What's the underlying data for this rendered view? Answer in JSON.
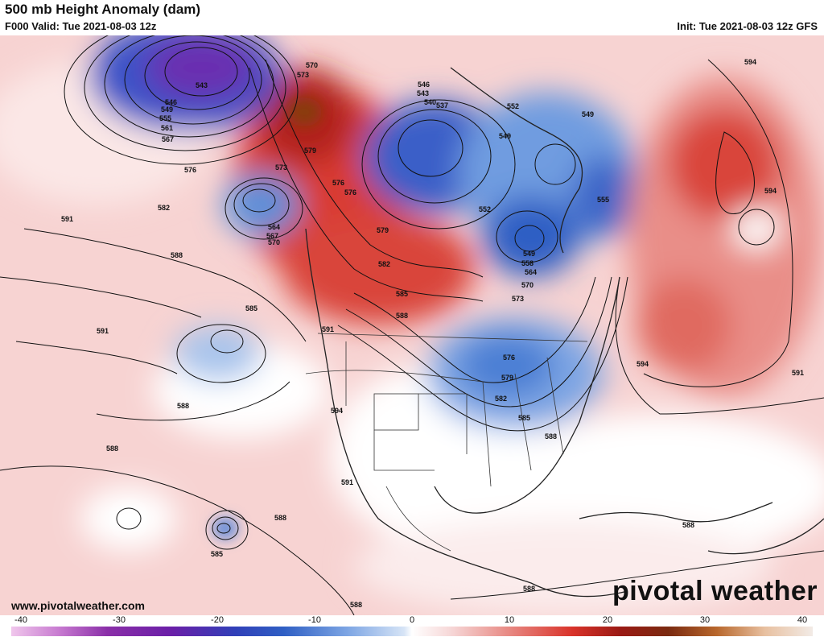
{
  "header": {
    "title": "500 mb Height Anomaly (dam)",
    "valid": "F000 Valid: Tue 2021-08-03 12z",
    "init": "Init: Tue 2021-08-03 12z GFS"
  },
  "footer": {
    "url": "www.pivotalweather.com",
    "brand": "pivotal weather"
  },
  "colorbar": {
    "ticks": [
      "-40",
      "-30",
      "-20",
      "-10",
      "0",
      "10",
      "20",
      "30",
      "40"
    ]
  },
  "contour_labels": {
    "nw_low": [
      "543",
      "546",
      "549",
      "555",
      "561",
      "567"
    ],
    "alaska_ridge": [
      "570",
      "573",
      "579"
    ],
    "gulf_alaska": [
      "576",
      "573",
      "582"
    ],
    "pacific_low": [
      "564",
      "567",
      "570"
    ],
    "west": [
      "591",
      "588",
      "585",
      "591",
      "588",
      "576",
      "576",
      "579",
      "582",
      "585",
      "588",
      "591",
      "594"
    ],
    "arctic": [
      "546",
      "543",
      "540",
      "537",
      "552",
      "549",
      "549",
      "552",
      "555"
    ],
    "hudson": [
      "549",
      "558",
      "564",
      "570",
      "573"
    ],
    "east_us": [
      "576",
      "579",
      "582",
      "585",
      "588"
    ],
    "atlantic": [
      "594",
      "594",
      "594",
      "591",
      "588"
    ],
    "south_pacific": [
      "588",
      "588",
      "585",
      "588",
      "591",
      "588"
    ],
    "far_east": [
      "588"
    ],
    "baja": [
      "594"
    ]
  },
  "legend_colors": {
    "strong_negative": "#6a1fa8",
    "negative": "#2f5fc4",
    "weak_negative": "#b9d0ee",
    "zero": "#ffffff",
    "weak_positive": "#f6c9c8",
    "positive": "#d9332a",
    "strong_positive": "#7a1010"
  }
}
